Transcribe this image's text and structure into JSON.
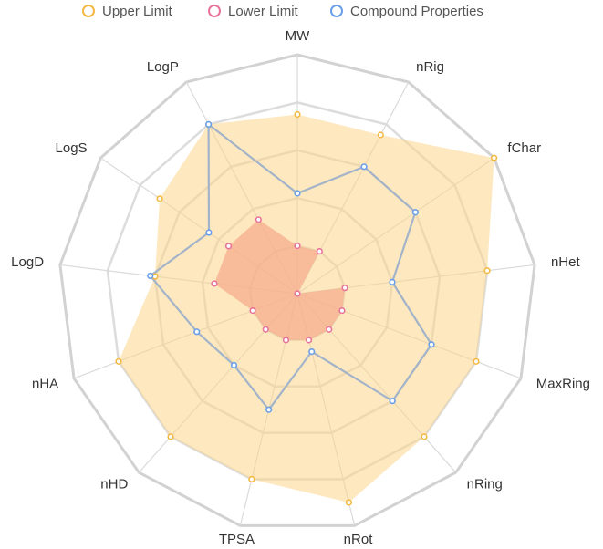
{
  "legend": [
    {
      "label": "Upper Limit",
      "color": "#f4b942"
    },
    {
      "label": "Lower Limit",
      "color": "#e8739a"
    },
    {
      "label": "Compound Properties",
      "color": "#6a9ee8"
    }
  ],
  "chart_data": {
    "type": "radar",
    "axes": [
      "MW",
      "nRig",
      "fChar",
      "nHet",
      "MaxRing",
      "nRing",
      "nRot",
      "TPSA",
      "nHD",
      "nHA",
      "LogD",
      "LogS",
      "LogP"
    ],
    "rmax": 1.0,
    "grid_levels": 5,
    "grid": true,
    "legend_position": "top",
    "series": [
      {
        "name": "Upper Limit",
        "color": "#f4b942",
        "fill": "#fcd68a",
        "fill_opacity": 0.55,
        "values": [
          0.75,
          0.75,
          1.0,
          0.8,
          0.8,
          0.8,
          0.9,
          0.8,
          0.8,
          0.8,
          0.6,
          0.7,
          0.8
        ]
      },
      {
        "name": "Lower Limit",
        "color": "#e8739a",
        "fill": "#f6a98a",
        "fill_opacity": 0.7,
        "values": [
          0.2,
          0.2,
          0.0,
          0.2,
          0.2,
          0.2,
          0.2,
          0.2,
          0.2,
          0.2,
          0.35,
          0.35,
          0.35
        ]
      },
      {
        "name": "Compound Properties",
        "color": "#6a9ee8",
        "stroke_line": "#a3b3c9",
        "values": [
          0.42,
          0.6,
          0.6,
          0.4,
          0.6,
          0.6,
          0.25,
          0.5,
          0.4,
          0.45,
          0.62,
          0.45,
          0.8
        ]
      }
    ]
  }
}
